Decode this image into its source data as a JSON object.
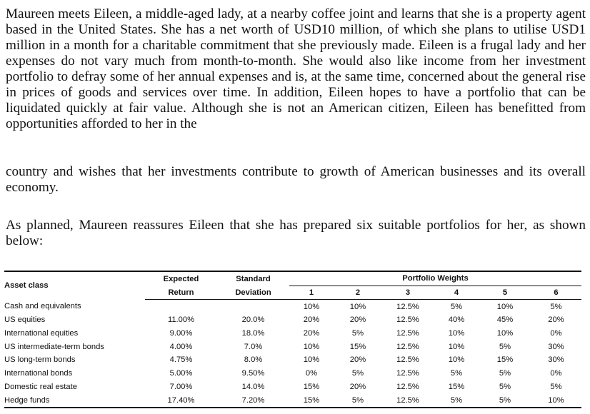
{
  "paragraphs": [
    "Maureen meets Eileen, a middle-aged lady, at a nearby coffee joint and learns that she is a property agent based in the United States. She has a net worth of USD10 million, of which she plans to utilise USD1 million in a month for a charitable commitment that she previously made. Eileen is a frugal lady and her expenses do not vary much from month-to-month. She would also like income from her investment portfolio to defray some of her annual expenses and is, at the same time, concerned about the general rise in prices of goods and services over time. In addition, Eileen hopes to have a portfolio that can be liquidated quickly at fair value. Although she is not an American citizen, Eileen has benefitted from opportunities afforded to her in the",
    "country and wishes that her investments contribute to growth of American businesses and its overall economy.",
    "As planned, Maureen reassures Eileen that she has prepared six suitable portfolios for her, as shown below:"
  ],
  "table": {
    "asset_class_header": "Asset class",
    "expected_header": [
      "Expected",
      "Return"
    ],
    "std_header": [
      "Standard",
      "Deviation"
    ],
    "weights_header": "Portfolio Weights",
    "portfolio_numbers": [
      "1",
      "2",
      "3",
      "4",
      "5",
      "6"
    ],
    "rows": [
      {
        "asset": "Cash and equivalents",
        "ret": "",
        "sd": "",
        "w": [
          "10%",
          "10%",
          "12.5%",
          "5%",
          "10%",
          "5%"
        ]
      },
      {
        "asset": "US equities",
        "ret": "11.00%",
        "sd": "20.0%",
        "w": [
          "20%",
          "20%",
          "12.5%",
          "40%",
          "45%",
          "20%"
        ]
      },
      {
        "asset": "International equities",
        "ret": "9.00%",
        "sd": "18.0%",
        "w": [
          "20%",
          "5%",
          "12.5%",
          "10%",
          "10%",
          "0%"
        ]
      },
      {
        "asset": "US intermediate-term bonds",
        "ret": "4.00%",
        "sd": "7.0%",
        "w": [
          "10%",
          "15%",
          "12.5%",
          "10%",
          "5%",
          "30%"
        ]
      },
      {
        "asset": "US long-term bonds",
        "ret": "4.75%",
        "sd": "8.0%",
        "w": [
          "10%",
          "20%",
          "12.5%",
          "10%",
          "15%",
          "30%"
        ]
      },
      {
        "asset": "International bonds",
        "ret": "5.00%",
        "sd": "9.50%",
        "w": [
          "0%",
          "5%",
          "12.5%",
          "5%",
          "5%",
          "0%"
        ]
      },
      {
        "asset": "Domestic real estate",
        "ret": "7.00%",
        "sd": "14.0%",
        "w": [
          "15%",
          "20%",
          "12.5%",
          "15%",
          "5%",
          "5%"
        ]
      },
      {
        "asset": "Hedge funds",
        "ret": "17.40%",
        "sd": "7.20%",
        "w": [
          "15%",
          "5%",
          "12.5%",
          "5%",
          "5%",
          "10%"
        ]
      }
    ]
  }
}
